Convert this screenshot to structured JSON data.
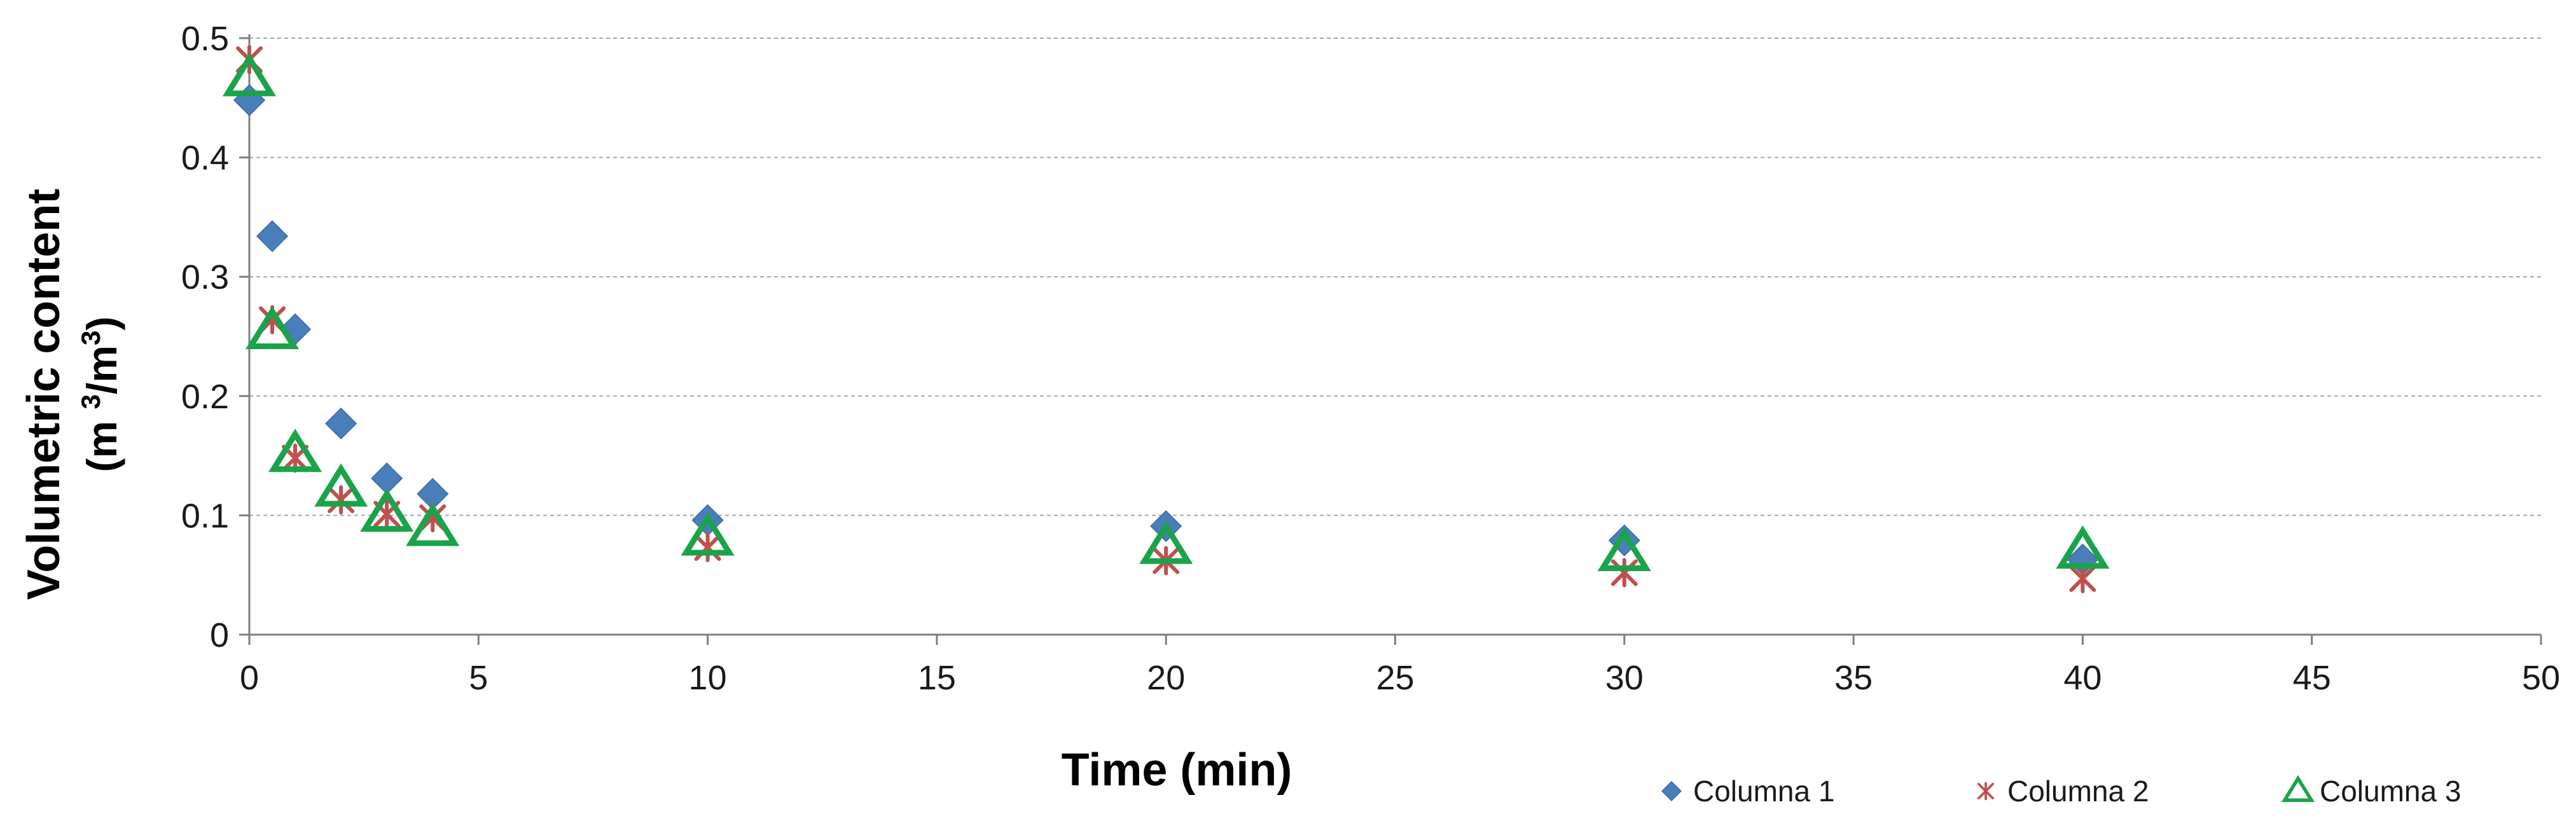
{
  "chart_data": {
    "type": "scatter",
    "xlabel": "Time (min)",
    "ylabel_line1": "Volumetric content",
    "ylabel_line2_prefix": "(m ",
    "ylabel_sup1": "3",
    "ylabel_mid": "/m",
    "ylabel_sup2": "3",
    "ylabel_suffix": ")",
    "xlim": [
      0,
      50
    ],
    "ylim": [
      0,
      0.5
    ],
    "x_ticks": [
      0,
      5,
      10,
      15,
      20,
      25,
      30,
      35,
      40,
      45,
      50
    ],
    "y_ticks": [
      0,
      0.1,
      0.2,
      0.3,
      0.4,
      0.5
    ],
    "x_tick_labels": [
      "0",
      "5",
      "10",
      "15",
      "20",
      "25",
      "30",
      "35",
      "40",
      "45",
      "50"
    ],
    "y_tick_labels": [
      "0",
      "0.1",
      "0.2",
      "0.3",
      "0.4",
      "0.5"
    ],
    "grid": "horizontal",
    "legend_position": "bottom-right",
    "series": [
      {
        "name": "Columna 1",
        "marker": "diamond",
        "color": "#4a7ebb",
        "x": [
          0,
          0.5,
          1,
          2,
          3,
          4,
          10,
          20,
          30,
          40
        ],
        "y": [
          0.448,
          0.334,
          0.256,
          0.177,
          0.131,
          0.118,
          0.096,
          0.091,
          0.079,
          0.063
        ]
      },
      {
        "name": "Columna 2",
        "marker": "star",
        "color": "#c0504d",
        "x": [
          0,
          0.5,
          1,
          2,
          3,
          4,
          10,
          20,
          30,
          40
        ],
        "y": [
          0.482,
          0.264,
          0.148,
          0.113,
          0.101,
          0.098,
          0.073,
          0.062,
          0.052,
          0.047
        ]
      },
      {
        "name": "Columna 3",
        "marker": "triangle",
        "color": "#1aa34a",
        "x": [
          0,
          0.5,
          1,
          2,
          3,
          4,
          10,
          20,
          30,
          40
        ],
        "y": [
          0.466,
          0.254,
          0.151,
          0.122,
          0.101,
          0.089,
          0.081,
          0.074,
          0.068,
          0.07
        ]
      }
    ]
  }
}
